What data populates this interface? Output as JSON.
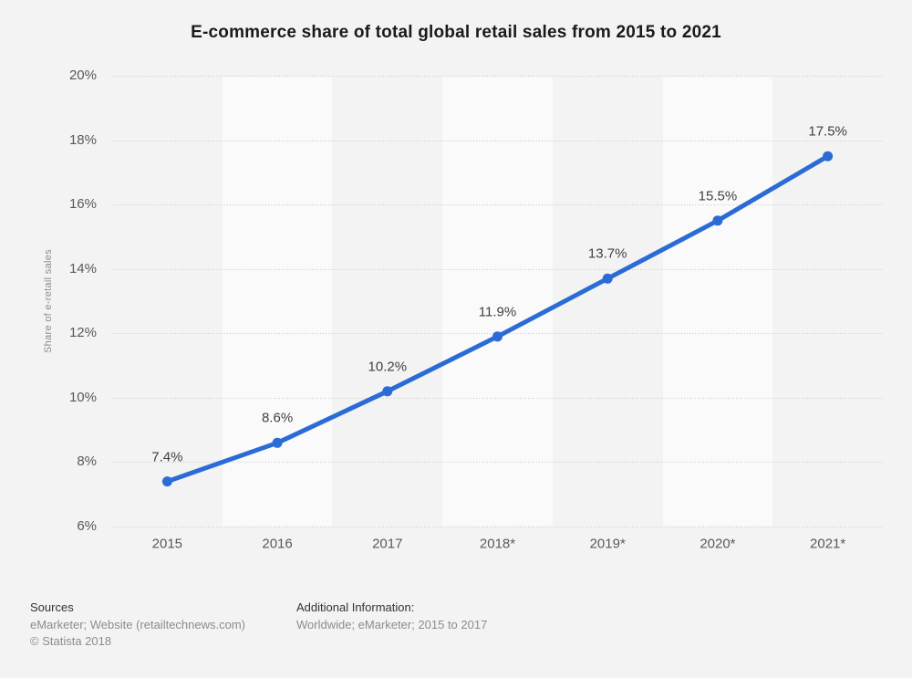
{
  "chart_data": {
    "type": "line",
    "title": "E-commerce share of total global retail sales from 2015 to 2021",
    "categories": [
      "2015",
      "2016",
      "2017",
      "2018*",
      "2019*",
      "2020*",
      "2021*"
    ],
    "values": [
      7.4,
      8.6,
      10.2,
      11.9,
      13.7,
      15.5,
      17.5
    ],
    "data_labels": [
      "7.4%",
      "8.6%",
      "10.2%",
      "11.9%",
      "13.7%",
      "15.5%",
      "17.5%"
    ],
    "xlabel": "",
    "ylabel": "Share of e-retail sales",
    "ylim": [
      6,
      20
    ],
    "ytick_step": 2,
    "ytick_labels": [
      "6%",
      "8%",
      "10%",
      "12%",
      "14%",
      "16%",
      "18%",
      "20%"
    ],
    "grid": "horizontal-dotted",
    "legend": "none",
    "line_color": "#2b6bd6",
    "marker": "circle",
    "gridline_color": "#c9c9c9",
    "band_color": "#fafafa",
    "background_color": "#f3f3f3"
  },
  "footer": {
    "sources_heading": "Sources",
    "sources_text": "eMarketer; Website (retailtechnews.com)",
    "copyright": "© Statista 2018",
    "additional_heading": "Additional Information:",
    "additional_text": "Worldwide; eMarketer; 2015 to 2017"
  }
}
